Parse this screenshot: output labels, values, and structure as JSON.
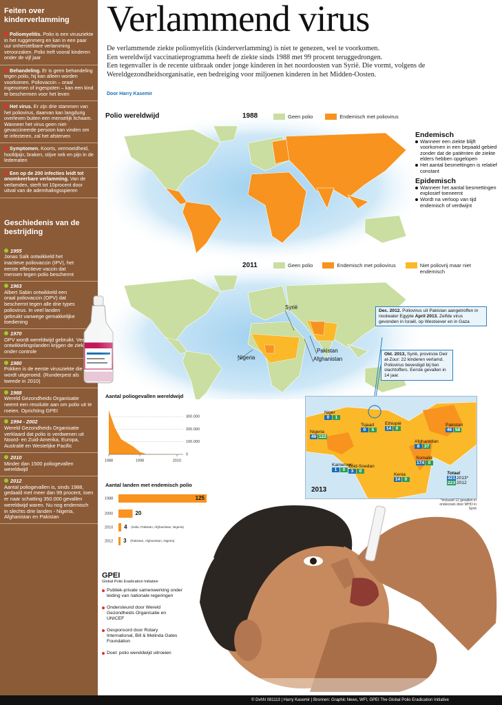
{
  "sidebar": {
    "facts_title": "Feiten over kinderverlamming",
    "facts": [
      {
        "head": "Poliomyelitis.",
        "text": "Polio is een virusziekte in het ruggenmerg en kan in een paar uur onherstelbare verlamming veroorzaken. Polio treft vooral kinderen onder de vijf jaar"
      },
      {
        "head": "Behandeling.",
        "text": "Er is geen behandeling tegen polio, hij kan alleen worden voorkomen. Poliovaccin – oraal ingenomen of ingespoten – kan een kind te beschermen voor het leven"
      },
      {
        "head": "Het virus.",
        "text": "Er zijn drie stammen van het poliovirus, daarvan kan langdurig overleven buiten een menselijk lichaam. Wanneer het virus geen niet-gevaccineerde persoon kan vinden om te infecteren, zal het afsterven"
      },
      {
        "head": "Symptomen.",
        "text": "Koorts, vermoeidheid, hoofdpijn, braken, stijve nek en pijn in de ledematen"
      },
      {
        "head": "Een op de 200 infecties leidt tot onomkeerbare verlamming.",
        "text": "Van de verlamden, sterft tot 10procent door uitval van de ademhalingsspieren"
      }
    ],
    "history_title": "Geschiedenis van de bestrijding",
    "history": [
      {
        "year": "1955",
        "text": "Jonas Salk ontwikkeld het inactieve poliovaccin (IPV), het eerste effectieve vaccin dat mensen tegen polio beschermt"
      },
      {
        "year": "1963",
        "text": "Albert Sabin ontwikkeld een oraal poliovaccin (OPV) dat beschermt tegen alle drie types poliovirus. In veel landen gebruikt vanwege gemakkelijke toediening"
      },
      {
        "year": "1970",
        "text": "OPV wordt wereldwijd gebruikt. Veel ontwikkelingslanden krijgen de ziekte onder controle"
      },
      {
        "year": "1980",
        "text": "Pokken is de eerste virusziekte die wordt uitgeroeid. (Runderpest als tweede in 2010)"
      },
      {
        "year": "1988",
        "text": "Wereld Gezondheids Organisatie neemt een resolutie aan om polio uit te roeien. Oprichting GPEI"
      },
      {
        "year": "1994 - 2002",
        "text": "Wereld Gezondheids Organisatie verklaard dat polio is verdwenen uit Noord- en Zuid-Amerika, Europa, Australië en Westelijke Pacific"
      },
      {
        "year": "2010",
        "text": "Minder dan 1500 poliogevallen wereldwijd"
      },
      {
        "year": "2012",
        "text": "Aantal poliogevallen is, sinds 1988, gedaald met meer dan 99 procent, toen er naar schatting 350.000 gevallen wereldwijd waren. Nu nog endemisch in slechts drie landen - Nigeria, Afghanistan en Pakistan"
      }
    ]
  },
  "header": {
    "title": "Verlammend virus",
    "intro": [
      "De verlammende ziekte poliomyelitis (kinderverlamming) is niet te genezen, wel te voorkomen.",
      "Een wereldwijd vaccinatieprogramma heeft de ziekte sinds 1988 met 99 procent teruggedrongen.",
      "Een tegenvaller is de recente uitbraak onder jonge kinderen in het noordoosten van Syrië. Die vormt, volgens de Wereldgezondheidsorganisatie, een bedreiging voor miljoenen kinderen in het Midden-Oosten."
    ],
    "byline": "Door Harry Kasemir"
  },
  "world": {
    "title": "Polio wereldwijd",
    "map1988": {
      "year": "1988",
      "legend": [
        "Geen polio",
        "Endemisch met poliovirus"
      ]
    },
    "map2011": {
      "year": "2011",
      "legend": [
        "Geen polio",
        "Endemisch met poliovirus",
        "Niet poliovrij maar niet endemisch"
      ],
      "labels": [
        "Syrië",
        "Pakistan",
        "Afghanistan",
        "Nigeria"
      ]
    }
  },
  "definitions": [
    {
      "title": "Endemisch",
      "bullets": [
        "Wanneer een ziekte blijft voorkomen in een bepaald gebied zonder dat de patiënten de ziekte elders hebben opgelopen",
        "Het aantal besmettingen is relatief constant"
      ]
    },
    {
      "title": "Epidemisch",
      "bullets": [
        "Wanneer het aantal besmettingen explosief toeneemt",
        "Wordt na verloop van tijd endemisch of verdwijnt"
      ]
    }
  ],
  "callouts": [
    [
      {
        "date": "Dec. 2012.",
        "text": "Poliovirus uit Pakistan aangetroffen in rioolwater Egypte"
      },
      {
        "date": "April 2013.",
        "text": "Zelfde virus gevonden in Israël, op Westoever en in Gaza"
      }
    ],
    [
      {
        "date": "Okt. 2013,",
        "text": "Syrië, provincie Deir al-Zour: 22 kinderen verlamd. Poliovirus bevestigd bij tien slachtoffers. Eerste gevallen in 14 jaar."
      }
    ]
  ],
  "map2013": {
    "title": "2013",
    "countries": [
      {
        "name": "Niger",
        "cases_2013": 0,
        "cases_2012": 1
      },
      {
        "name": "Nigeria",
        "cases_2013": 49,
        "cases_2012": 122
      },
      {
        "name": "Tsjaad",
        "cases_2013": 0,
        "cases_2012": 5
      },
      {
        "name": "Ethiopië",
        "cases_2013": 14,
        "cases_2012": 0
      },
      {
        "name": "Pakistan",
        "cases_2013": 46,
        "cases_2012": 58
      },
      {
        "name": "Afghanistan",
        "cases_2013": 8,
        "cases_2012": 37
      },
      {
        "name": "Somalië",
        "cases_2013": 174,
        "cases_2012": 0
      },
      {
        "name": "Kameroen",
        "cases_2013": 1,
        "cases_2012": 0
      },
      {
        "name": "Zuid-Soedan",
        "cases_2013": 3,
        "cases_2012": 0
      },
      {
        "name": "Kenia",
        "cases_2013": 14,
        "cases_2012": 0
      }
    ],
    "total": {
      "label": "Totaal",
      "rows": [
        {
          "value": 321,
          "year": "2013*"
        },
        {
          "value": 223,
          "year": "2012"
        }
      ]
    },
    "note": "*inclusief 12 gevallen in onderzoek door WHO in Syrië"
  },
  "chart_data": [
    {
      "type": "area",
      "title": "Aantal poliogevallen wereldwijd",
      "color": "#f7931e",
      "x": [
        1988,
        1990,
        1992,
        1994,
        1996,
        1998,
        2000,
        2002,
        2004,
        2006,
        2008,
        2010,
        2012
      ],
      "values": [
        350000,
        210000,
        120000,
        90000,
        60000,
        20000,
        3000,
        2000,
        1300,
        2000,
        1700,
        1350,
        223
      ],
      "xlim": [
        1988,
        2012
      ],
      "xticks": [
        1988,
        1998,
        2010
      ],
      "ylim": [
        0,
        350000
      ],
      "yticks": [
        0,
        {
          "value": 100000,
          "label": "100.000"
        },
        {
          "value": 200000,
          "label": "200.000"
        },
        {
          "value": 300000,
          "label": "300.000"
        }
      ],
      "grid": true
    },
    {
      "type": "hbar",
      "title": "Aantal landen met endemisch polio",
      "color": "#f7931e",
      "categories": [
        "1988",
        "2000",
        "2010",
        "2012"
      ],
      "values": [
        125,
        20,
        4,
        3
      ],
      "notes": [
        null,
        null,
        "(India, Pakistan, Afghanistan, Nigeria)",
        "(Pakistan, Afghanistan, Nigeria)"
      ],
      "xlim": [
        0,
        125
      ]
    }
  ],
  "gpei": {
    "title": "GPEI",
    "subtitle": "Global Polio Eradication Initiative",
    "bullets": [
      "Publiek-private samenwerking onder leiding van nationale regeringen",
      "Ondersteund door Wereld Gezondheids Organisatie en UNICEF",
      "Gesponsord door Rotary International, Bill & Melinda Gates Foundation",
      "Doel: polio wereldwijd uitroeien"
    ]
  },
  "footer": "© DvhN 081113 | Harry Kasemir | Bronnen: Graphic News, WFI, GPEI The Global Polio Eradication Initiative"
}
